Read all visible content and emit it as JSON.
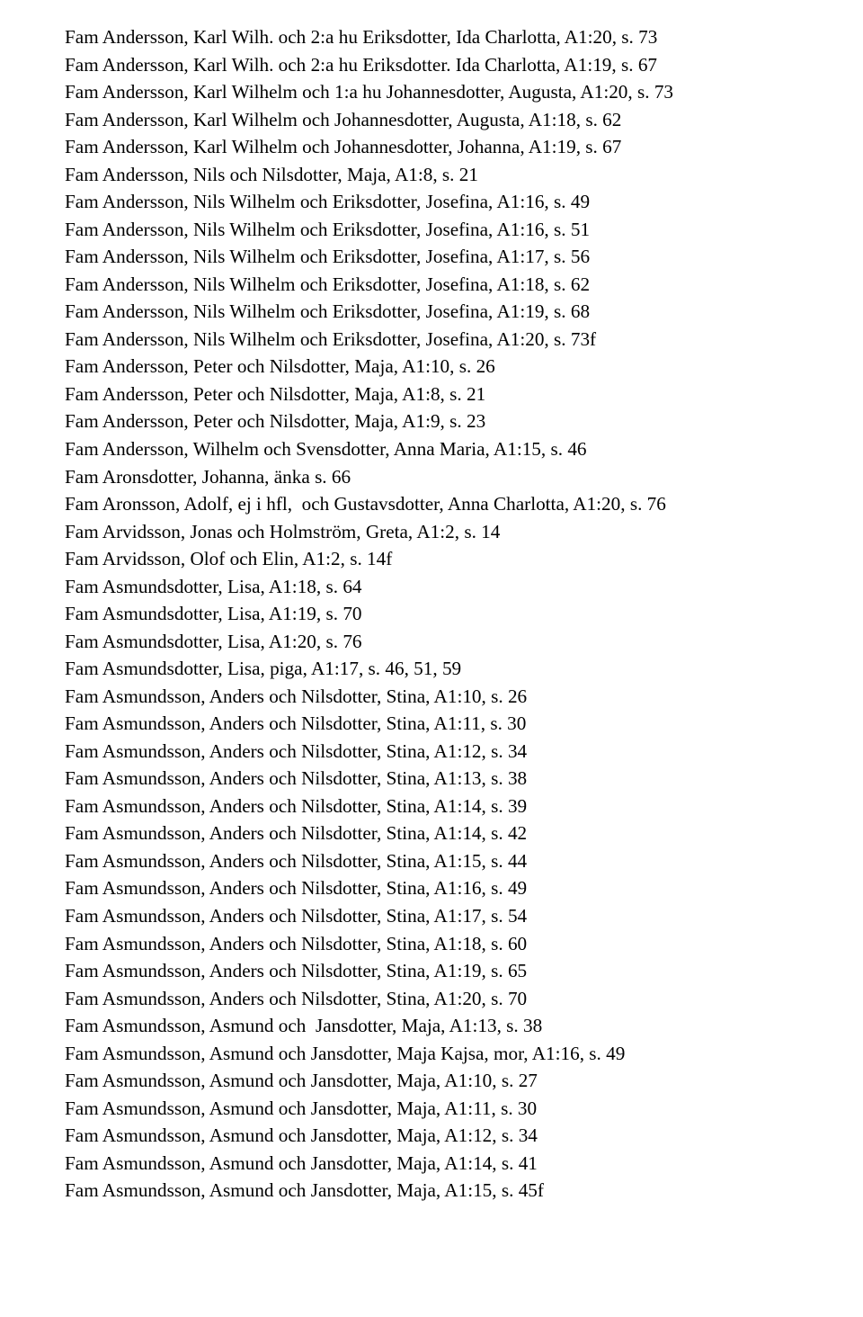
{
  "font": {
    "family": "Times New Roman",
    "size_pt": 16,
    "line_height": 1.44
  },
  "colors": {
    "text": "#000000",
    "background": "#ffffff"
  },
  "lines": [
    "Fam Andersson, Karl Wilh. och 2:a hu Eriksdotter, Ida Charlotta, A1:20, s. 73",
    "Fam Andersson, Karl Wilh. och 2:a hu Eriksdotter. Ida Charlotta, A1:19, s. 67",
    "Fam Andersson, Karl Wilhelm och 1:a hu Johannesdotter, Augusta, A1:20, s. 73",
    "Fam Andersson, Karl Wilhelm och Johannesdotter, Augusta, A1:18, s. 62",
    "Fam Andersson, Karl Wilhelm och Johannesdotter, Johanna, A1:19, s. 67",
    "Fam Andersson, Nils och Nilsdotter, Maja, A1:8, s. 21",
    "Fam Andersson, Nils Wilhelm och Eriksdotter, Josefina, A1:16, s. 49",
    "Fam Andersson, Nils Wilhelm och Eriksdotter, Josefina, A1:16, s. 51",
    "Fam Andersson, Nils Wilhelm och Eriksdotter, Josefina, A1:17, s. 56",
    "Fam Andersson, Nils Wilhelm och Eriksdotter, Josefina, A1:18, s. 62",
    "Fam Andersson, Nils Wilhelm och Eriksdotter, Josefina, A1:19, s. 68",
    "Fam Andersson, Nils Wilhelm och Eriksdotter, Josefina, A1:20, s. 73f",
    "Fam Andersson, Peter och Nilsdotter, Maja, A1:10, s. 26",
    "Fam Andersson, Peter och Nilsdotter, Maja, A1:8, s. 21",
    "Fam Andersson, Peter och Nilsdotter, Maja, A1:9, s. 23",
    "Fam Andersson, Wilhelm och Svensdotter, Anna Maria, A1:15, s. 46",
    "Fam Aronsdotter, Johanna, änka s. 66",
    "Fam Aronsson, Adolf, ej i hfl,  och Gustavsdotter, Anna Charlotta, A1:20, s. 76",
    "Fam Arvidsson, Jonas och Holmström, Greta, A1:2, s. 14",
    "Fam Arvidsson, Olof och Elin, A1:2, s. 14f",
    "Fam Asmundsdotter, Lisa, A1:18, s. 64",
    "Fam Asmundsdotter, Lisa, A1:19, s. 70",
    "Fam Asmundsdotter, Lisa, A1:20, s. 76",
    "Fam Asmundsdotter, Lisa, piga, A1:17, s. 46, 51, 59",
    "Fam Asmundsson, Anders och Nilsdotter, Stina, A1:10, s. 26",
    "Fam Asmundsson, Anders och Nilsdotter, Stina, A1:11, s. 30",
    "Fam Asmundsson, Anders och Nilsdotter, Stina, A1:12, s. 34",
    "Fam Asmundsson, Anders och Nilsdotter, Stina, A1:13, s. 38",
    "Fam Asmundsson, Anders och Nilsdotter, Stina, A1:14, s. 39",
    "Fam Asmundsson, Anders och Nilsdotter, Stina, A1:14, s. 42",
    "Fam Asmundsson, Anders och Nilsdotter, Stina, A1:15, s. 44",
    "Fam Asmundsson, Anders och Nilsdotter, Stina, A1:16, s. 49",
    "Fam Asmundsson, Anders och Nilsdotter, Stina, A1:17, s. 54",
    "Fam Asmundsson, Anders och Nilsdotter, Stina, A1:18, s. 60",
    "Fam Asmundsson, Anders och Nilsdotter, Stina, A1:19, s. 65",
    "Fam Asmundsson, Anders och Nilsdotter, Stina, A1:20, s. 70",
    "Fam Asmundsson, Asmund och  Jansdotter, Maja, A1:13, s. 38",
    "Fam Asmundsson, Asmund och Jansdotter, Maja Kajsa, mor, A1:16, s. 49",
    "Fam Asmundsson, Asmund och Jansdotter, Maja, A1:10, s. 27",
    "Fam Asmundsson, Asmund och Jansdotter, Maja, A1:11, s. 30",
    "Fam Asmundsson, Asmund och Jansdotter, Maja, A1:12, s. 34",
    "Fam Asmundsson, Asmund och Jansdotter, Maja, A1:14, s. 41",
    "Fam Asmundsson, Asmund och Jansdotter, Maja, A1:15, s. 45f"
  ]
}
